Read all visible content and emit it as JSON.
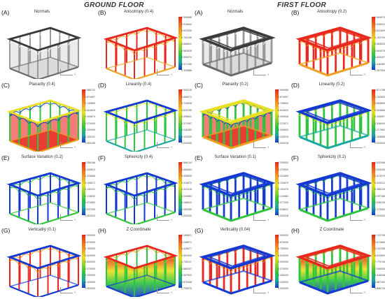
{
  "headers": {
    "ground": "GROUND FLOOR",
    "first": "FIRST FLOOR"
  },
  "ground": [
    {
      "label": "(A)",
      "title": "Normals",
      "scheme": "gray",
      "ticks": []
    },
    {
      "label": "(B)",
      "title": "Anisotropy (0.4)",
      "scheme": "redframe",
      "ticks": [
        "0.999988",
        "0.916644",
        "0.833300",
        "0.750156",
        "0.666611",
        "0.583628",
        "0.500374",
        "0.417150",
        "0.333886"
      ]
    },
    {
      "label": "(C)",
      "title": "Planarity (0.4)",
      "scheme": "planar",
      "ticks": [
        "0.966732",
        "0.874907",
        "0.749863",
        "0.624819",
        "0.499874",
        "0.374930",
        "0.250099",
        "0.125141",
        "0.000155"
      ]
    },
    {
      "label": "(D)",
      "title": "Linearity (0.4)",
      "scheme": "linear",
      "ticks": [
        "0.993218",
        "0.868072",
        "0.744828",
        "0.620785",
        "0.496641",
        "0.372497",
        "0.248353",
        "0.124209",
        "0.000065"
      ]
    },
    {
      "label": "(E)",
      "title": "Surface Variation (0.2)",
      "scheme": "bluegreen",
      "ticks": [
        "0.256168",
        "0.240813",
        "0.225846",
        "0.196571",
        "0.149101",
        "0.115632",
        "0.074562",
        "0.037293",
        "0.000023"
      ]
    },
    {
      "label": "(F)",
      "title": "Sphericity (0.4)",
      "scheme": "bluegreen",
      "ticks": [
        "0.666134",
        "0.582683",
        "0.499825",
        "0.416572",
        "0.333118",
        "0.249884",
        "0.166613",
        "0.083359",
        "0.000000"
      ]
    },
    {
      "label": "(G)",
      "title": "Verticality (0.1)",
      "scheme": "vertical",
      "ticks": [
        "1.000000",
        "0.875000",
        "0.750000",
        "0.625000",
        "0.500000",
        "0.375000",
        "0.250000",
        "0.125000",
        "0.000000"
      ]
    },
    {
      "label": "(H)",
      "title": "Z Coordinate",
      "scheme": "zcoord",
      "ticks": [
        "5.169821",
        "4.298571",
        "3.445677",
        "2.591002",
        "1.735127",
        "0.880347",
        "-0.007523",
        "-0.870408",
        "-1.730975"
      ]
    }
  ],
  "first": [
    {
      "label": "(A)",
      "title": "Normals",
      "scheme": "gray",
      "ticks": []
    },
    {
      "label": "(B)",
      "title": "Anisotropy (0.2)",
      "scheme": "redframe",
      "ticks": [
        "0.999973",
        "0.925912",
        "0.841829",
        "0.762794",
        "0.683633",
        "0.604579",
        "0.525427",
        "0.446362",
        "0.367304"
      ]
    },
    {
      "label": "(C)",
      "title": "Planarity (0.2)",
      "scheme": "planar",
      "ticks": [
        "0.999989",
        "0.874997",
        "0.749809",
        "0.624629",
        "0.499548",
        "0.374571",
        "0.249802",
        "0.125015",
        "0.000018"
      ]
    },
    {
      "label": "(D)",
      "title": "Linearity (0.2)",
      "scheme": "linear",
      "ticks": [
        "0.871756",
        "0.762825",
        "0.653853",
        "0.544866",
        "0.435907",
        "0.326940",
        "0.217962",
        "0.108985",
        "0.000003"
      ]
    },
    {
      "label": "(E)",
      "title": "Surface Variation (0.1)",
      "scheme": "bluegreen",
      "ticks": [
        "0.309503",
        "0.270920",
        "0.231895",
        "0.193875",
        "0.154470",
        "0.115962",
        "0.077305",
        "0.038647",
        "0.000028"
      ]
    },
    {
      "label": "(F)",
      "title": "Sphericity (0.2)",
      "scheme": "bluegreen",
      "ticks": [
        "0.932496",
        "0.533436",
        "0.474375",
        "0.415312",
        "0.356249",
        "0.297188",
        "0.238125",
        "0.179064",
        "0.000000"
      ]
    },
    {
      "label": "(G)",
      "title": "Verticality (0.04)",
      "scheme": "vertical",
      "ticks": [
        "1.000000",
        "0.875000",
        "0.750000",
        "0.625000",
        "0.500000",
        "0.375000",
        "0.250000",
        "0.125000",
        "0.000000"
      ]
    },
    {
      "label": "(H)",
      "title": "Z Coordinate",
      "scheme": "zcoord",
      "ticks": [
        "10.722755",
        "9.872850",
        "9.241256",
        "8.510600",
        "7.779745",
        "7.048935",
        "6.318038",
        "5.587183",
        "4.856725"
      ]
    }
  ],
  "axis_label": "Y",
  "colors": {
    "red": "#e8281e",
    "orange": "#f0a020",
    "yellow": "#e8e020",
    "green": "#2ec43c",
    "blue": "#1438d2",
    "darkblue": "#0a1a8c",
    "gray": "#8a8a8a"
  }
}
